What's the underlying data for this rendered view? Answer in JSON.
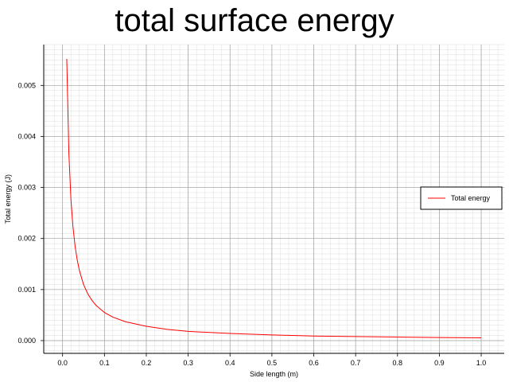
{
  "chart_data": {
    "type": "line",
    "title": "total surface energy",
    "xlabel": "Side length (m)",
    "ylabel": "Total energy (J)",
    "xlim": [
      -0.045,
      1.055
    ],
    "ylim": [
      -0.00025,
      0.0058
    ],
    "xticks": [
      "0.0",
      "0.1",
      "0.2",
      "0.3",
      "0.4",
      "0.5",
      "0.6",
      "0.7",
      "0.8",
      "0.9",
      "1.0"
    ],
    "yticks": [
      "0.000",
      "0.001",
      "0.002",
      "0.003",
      "0.004",
      "0.005"
    ],
    "grid": true,
    "legend_position": "right",
    "series": [
      {
        "name": "Total energy",
        "color": "#ff0000",
        "x": [
          0.01,
          0.015,
          0.02,
          0.025,
          0.03,
          0.035,
          0.04,
          0.05,
          0.06,
          0.07,
          0.08,
          0.1,
          0.12,
          0.15,
          0.2,
          0.25,
          0.3,
          0.4,
          0.5,
          0.6,
          0.7,
          0.8,
          0.9,
          1.0
        ],
        "y": [
          0.00552,
          0.00368,
          0.00276,
          0.00221,
          0.00184,
          0.00158,
          0.00138,
          0.0011,
          0.00092,
          0.00079,
          0.00069,
          0.00055,
          0.00046,
          0.00037,
          0.00028,
          0.00022,
          0.00018,
          0.00014,
          0.00011,
          9e-05,
          8e-05,
          7e-05,
          6e-05,
          5.5e-05
        ]
      }
    ]
  }
}
